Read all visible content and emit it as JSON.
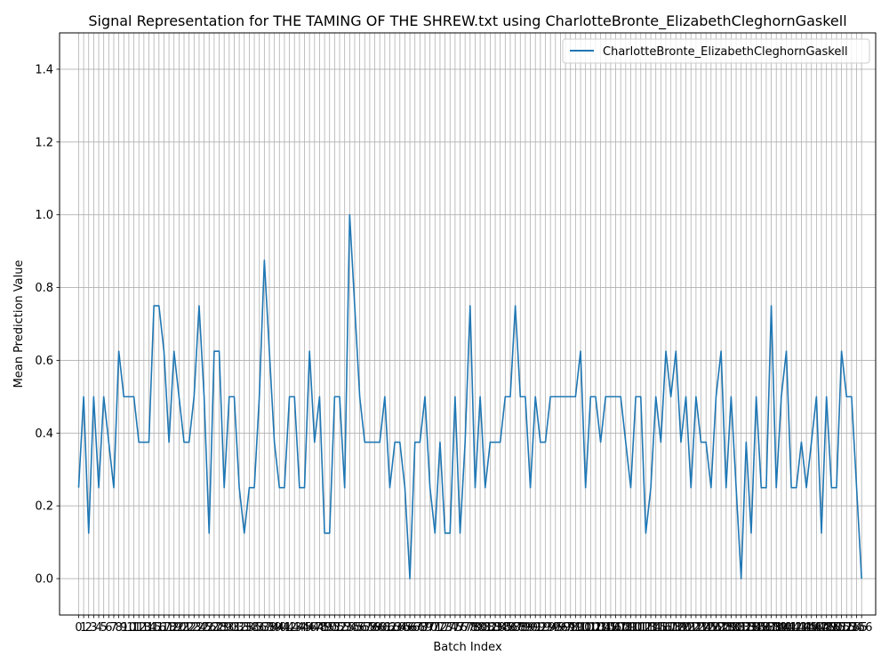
{
  "chart_data": {
    "type": "line",
    "title": "Signal Representation for THE TAMING OF THE SHREW.txt using CharlotteBronte_ElizabethCleghornGaskell",
    "xlabel": "Batch Index",
    "ylabel": "Mean Prediction Value",
    "xlim": [
      -3.8,
      158.8
    ],
    "ylim": [
      -0.1,
      1.5
    ],
    "yticks": [
      0.0,
      0.2,
      0.4,
      0.6,
      0.8,
      1.0,
      1.2,
      1.4
    ],
    "ytick_labels": [
      "0.0",
      "0.2",
      "0.4",
      "0.6",
      "0.8",
      "1.0",
      "1.2",
      "1.4"
    ],
    "xticks_step": 1,
    "grid": true,
    "legend_position": "top-right",
    "series": [
      {
        "name": "CharlotteBronte_ElizabethCleghornGaskell",
        "color": "#1f77b4",
        "x_start": 0,
        "values": [
          0.25,
          0.5,
          0.125,
          0.5,
          0.25,
          0.5,
          0.375,
          0.25,
          0.625,
          0.5,
          0.5,
          0.5,
          0.375,
          0.375,
          0.375,
          0.75,
          0.75,
          0.625,
          0.375,
          0.625,
          0.5,
          0.375,
          0.375,
          0.5,
          0.75,
          0.5,
          0.125,
          0.625,
          0.625,
          0.25,
          0.5,
          0.5,
          0.25,
          0.125,
          0.25,
          0.25,
          0.5,
          0.875,
          0.625,
          0.375,
          0.25,
          0.25,
          0.5,
          0.5,
          0.25,
          0.25,
          0.625,
          0.375,
          0.5,
          0.125,
          0.125,
          0.5,
          0.5,
          0.25,
          1.0,
          0.75,
          0.5,
          0.375,
          0.375,
          0.375,
          0.375,
          0.5,
          0.25,
          0.375,
          0.375,
          0.25,
          0.0,
          0.375,
          0.375,
          0.5,
          0.25,
          0.125,
          0.375,
          0.125,
          0.125,
          0.5,
          0.125,
          0.375,
          0.75,
          0.25,
          0.5,
          0.25,
          0.375,
          0.375,
          0.375,
          0.5,
          0.5,
          0.75,
          0.5,
          0.5,
          0.25,
          0.5,
          0.375,
          0.375,
          0.5,
          0.5,
          0.5,
          0.5,
          0.5,
          0.5,
          0.625,
          0.25,
          0.5,
          0.5,
          0.375,
          0.5,
          0.5,
          0.5,
          0.5,
          0.375,
          0.25,
          0.5,
          0.5,
          0.125,
          0.25,
          0.5,
          0.375,
          0.625,
          0.5,
          0.625,
          0.375,
          0.5,
          0.25,
          0.5,
          0.375,
          0.375,
          0.25,
          0.5,
          0.625,
          0.25,
          0.5,
          0.25,
          0.0,
          0.375,
          0.125,
          0.5,
          0.25,
          0.25,
          0.75,
          0.25,
          0.5,
          0.625,
          0.25,
          0.25,
          0.375,
          0.25,
          0.375,
          0.5,
          0.125,
          0.5,
          0.25,
          0.25,
          0.625,
          0.5,
          0.5,
          0.25,
          0.0
        ]
      }
    ]
  }
}
